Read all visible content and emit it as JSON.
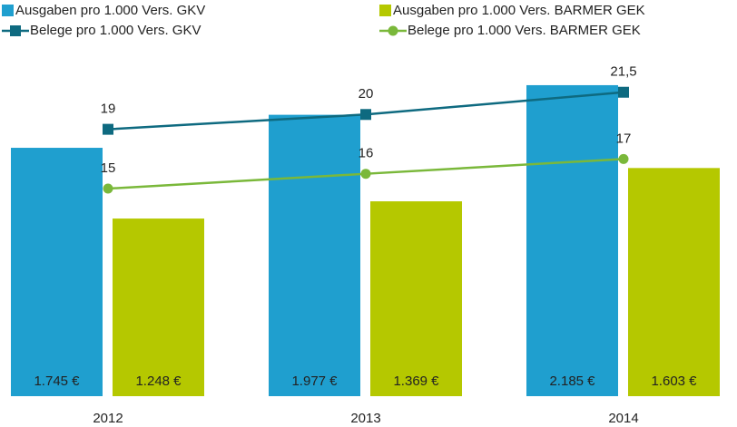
{
  "chart_data": {
    "type": "bar",
    "categories": [
      "2012",
      "2013",
      "2014"
    ],
    "ylim": [
      0,
      2500
    ],
    "y2lim": [
      1,
      25
    ],
    "legend": "top",
    "series": [
      {
        "name": "Ausgaben pro 1.000 Vers. GKV",
        "type": "bar",
        "color": "#1f9fcf",
        "values": [
          1745,
          1977,
          2185
        ],
        "value_labels": [
          "1.745 €",
          "1.977 €",
          "2.185 €"
        ]
      },
      {
        "name": "Ausgaben pro 1.000 Vers. BARMER GEK",
        "type": "bar",
        "color": "#b5c800",
        "values": [
          1248,
          1369,
          1603
        ],
        "value_labels": [
          "1.248 €",
          "1.369 €",
          "1.603 €"
        ]
      },
      {
        "name": "Belege pro 1.000 Vers. GKV",
        "type": "line",
        "axis": "y2",
        "marker": "square",
        "color": "#0e6a80",
        "values": [
          19,
          20,
          21.5
        ],
        "value_labels": [
          "19",
          "20",
          "21,5"
        ]
      },
      {
        "name": "Belege pro 1.000 Vers. BARMER GEK",
        "type": "line",
        "axis": "y2",
        "marker": "circle",
        "color": "#7ab83a",
        "values": [
          15,
          16,
          17
        ],
        "value_labels": [
          "15",
          "16",
          "17"
        ]
      }
    ]
  }
}
